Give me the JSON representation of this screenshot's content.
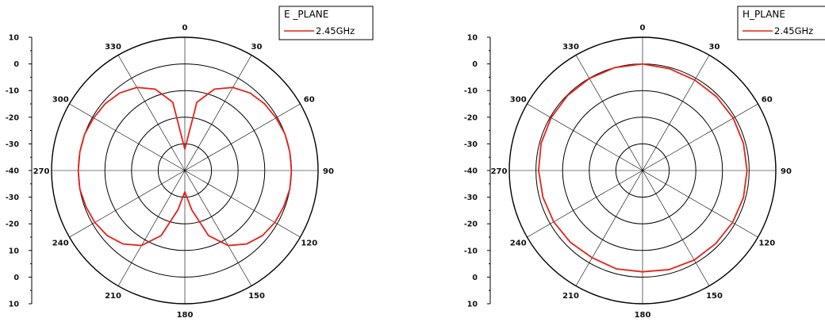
{
  "chart_data": [
    {
      "type": "polar-line",
      "title": "",
      "legend": {
        "title": "E _PLANE",
        "entries": [
          "2.45GHz"
        ],
        "placement": "top-right"
      },
      "angle_labels": [
        "0",
        "30",
        "60",
        "90",
        "120",
        "150",
        "180",
        "210",
        "240",
        "270",
        "300",
        "330"
      ],
      "radial_tick_labels": [
        "10",
        "0",
        "-10",
        "-20",
        "-30",
        "-40",
        "-30",
        "-20",
        "10",
        "0",
        "10"
      ],
      "r_range_dB": [
        -40,
        10
      ],
      "grid": true,
      "series": [
        {
          "name": "2.45GHz",
          "color": "#e2231a",
          "theta_deg": [
            0,
            10,
            20,
            30,
            40,
            50,
            60,
            70,
            80,
            90,
            100,
            110,
            120,
            130,
            140,
            150,
            160,
            170,
            180,
            190,
            200,
            210,
            220,
            230,
            240,
            250,
            260,
            270,
            280,
            290,
            300,
            310,
            320,
            330,
            340,
            350,
            360
          ],
          "gain_dB": [
            -32,
            -14,
            -7.5,
            -4,
            -2,
            -1,
            -0.5,
            0,
            0,
            0,
            0,
            -0.5,
            -1,
            -2,
            -4,
            -7.5,
            -14,
            -25,
            -32,
            -25,
            -14,
            -7.5,
            -4,
            -2,
            -1,
            -0.5,
            0,
            0,
            0,
            0,
            -0.5,
            -1,
            -2,
            -4,
            -7.5,
            -14,
            -32
          ]
        }
      ]
    },
    {
      "type": "polar-line",
      "title": "",
      "legend": {
        "title": "H_PLANE",
        "entries": [
          "2.45GHz"
        ],
        "placement": "top-right"
      },
      "angle_labels": [
        "0",
        "30",
        "60",
        "90",
        "120",
        "150",
        "180",
        "210",
        "240",
        "270",
        "300",
        "330"
      ],
      "radial_tick_labels": [
        "10",
        "0",
        "-10",
        "-20",
        "-30",
        "-40",
        "-30",
        "-20",
        "-10",
        "0",
        "10"
      ],
      "r_range_dB": [
        -40,
        10
      ],
      "grid": true,
      "series": [
        {
          "name": "2.45GHz",
          "color": "#e2231a",
          "theta_deg": [
            0,
            15,
            30,
            45,
            60,
            75,
            90,
            105,
            120,
            135,
            150,
            165,
            180,
            195,
            210,
            225,
            240,
            255,
            270,
            285,
            300,
            315,
            330,
            345,
            360
          ],
          "gain_dB": [
            0,
            -0.5,
            -0.8,
            -0.8,
            -0.7,
            -0.8,
            -0.8,
            -0.8,
            -1,
            -1.2,
            -1.2,
            -1.5,
            -2,
            -1.8,
            -2.2,
            -1.8,
            -1.5,
            -1.3,
            -1.0,
            -0.6,
            -0.4,
            -0.2,
            -0.1,
            0,
            0
          ]
        }
      ]
    }
  ]
}
